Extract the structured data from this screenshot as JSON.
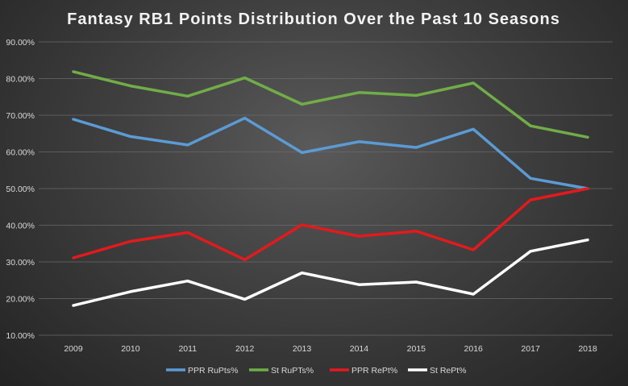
{
  "chart_data": {
    "type": "line",
    "title": "Fantasy  RB1  Points  Distribution  Over  the  Past  10  Seasons",
    "xlabel": "",
    "ylabel": "",
    "categories": [
      "2009",
      "2010",
      "2011",
      "2012",
      "2013",
      "2014",
      "2015",
      "2016",
      "2017",
      "2018"
    ],
    "y_ticks": [
      "10.00%",
      "20.00%",
      "30.00%",
      "40.00%",
      "50.00%",
      "60.00%",
      "70.00%",
      "80.00%",
      "90.00%"
    ],
    "ylim": [
      10,
      90
    ],
    "grid": true,
    "legend_position": "bottom",
    "series": [
      {
        "name": "PPR RuPts%",
        "color": "#5b9bd5",
        "values": [
          68.9,
          64.2,
          61.9,
          69.2,
          59.8,
          62.8,
          61.2,
          66.2,
          52.8,
          50.0
        ]
      },
      {
        "name": "St RuPTs%",
        "color": "#70ad47",
        "values": [
          81.9,
          78.0,
          75.2,
          80.2,
          73.0,
          76.2,
          75.4,
          78.8,
          67.1,
          64.0
        ]
      },
      {
        "name": "PPR RePt%",
        "color": "#e31a1c",
        "values": [
          31.1,
          35.6,
          38.0,
          30.6,
          40.1,
          37.0,
          38.4,
          33.3,
          46.9,
          50.0
        ]
      },
      {
        "name": "St RePt%",
        "color": "#ffffff",
        "values": [
          18.1,
          21.9,
          24.8,
          19.8,
          27.0,
          23.8,
          24.5,
          21.2,
          32.9,
          36.0
        ]
      }
    ]
  }
}
